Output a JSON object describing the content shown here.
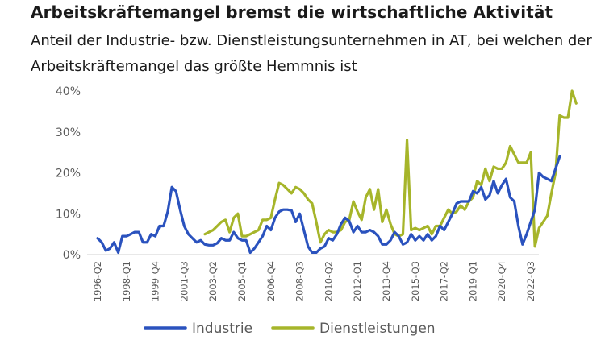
{
  "header": {
    "title": "Arbeitskräftemangel bremst die wirtschaftliche Aktivität",
    "subtitle": "Anteil der Industrie- bzw. Dienstleistungsunternehmen in AT, bei welchen der Arbeitskräftemangel das größte Hemmnis ist"
  },
  "colors": {
    "industrie": "#2a52be",
    "dienstleistungen": "#a6b52a",
    "axis": "#d9d9d9"
  },
  "chart_data": {
    "type": "line",
    "title": "Arbeitskräftemangel bremst die wirtschaftliche Aktivität",
    "subtitle": "Anteil der Industrie- bzw. Dienstleistungsunternehmen in AT, bei welchen der Arbeitskräftemangel das größte Hemmnis ist",
    "xlabel": "",
    "ylabel": "",
    "ylim": [
      0,
      40
    ],
    "y_ticks": [
      "0%",
      "10%",
      "20%",
      "30%",
      "40%"
    ],
    "x_tick_labels": [
      "1996-Q2",
      "1998-Q1",
      "1999-Q4",
      "2001-Q3",
      "2003-Q2",
      "2005-Q1",
      "2006-Q4",
      "2008-Q3",
      "2010-Q2",
      "2012-Q1",
      "2013-Q4",
      "2015-Q3",
      "2017-Q2",
      "2019-Q1",
      "2020-Q4",
      "2022-Q3"
    ],
    "legend": {
      "placement": "bottom",
      "entries": [
        "Industrie",
        "Dienstleistungen"
      ]
    },
    "series": [
      {
        "name": "Industrie",
        "start": "1996-Q2",
        "values": [
          4,
          3,
          1,
          1.5,
          3,
          0.5,
          4.5,
          4.5,
          5,
          5.5,
          5.5,
          3,
          3,
          5,
          4.5,
          7,
          7,
          10.5,
          16.5,
          15.5,
          11,
          7,
          5,
          4,
          3,
          3.5,
          2.5,
          2.3,
          2.3,
          2.8,
          4,
          3.5,
          3.5,
          5.5,
          4,
          3.5,
          3.5,
          0.5,
          1.5,
          3,
          4.5,
          7,
          6,
          9,
          10.5,
          11,
          11,
          10.8,
          8,
          10,
          6,
          2,
          0.5,
          0.5,
          1.5,
          2,
          4,
          3.5,
          5,
          7.5,
          9,
          8.2,
          5.5,
          7,
          5.5,
          5.5,
          6,
          5.5,
          4.5,
          2.5,
          2.5,
          3.5,
          5.5,
          4.5,
          2.5,
          3,
          5,
          3.5,
          4.5,
          3.5,
          5,
          3.5,
          4.5,
          7,
          6,
          8,
          10,
          12.5,
          13,
          13,
          13,
          15.5,
          15,
          16.5,
          13.5,
          14.5,
          18,
          15,
          17,
          18.5,
          14,
          13,
          7,
          2.5,
          5,
          8,
          11,
          20,
          19,
          18.5,
          18,
          21,
          24
        ]
      },
      {
        "name": "Dienstleistungen",
        "start": "2002-Q4",
        "values": [
          5,
          5.5,
          6,
          7,
          8,
          8.5,
          5.5,
          9,
          10,
          4.5,
          4.5,
          5,
          5.5,
          6,
          8.5,
          8.5,
          9,
          13.5,
          17.5,
          17,
          16,
          15,
          16.5,
          16,
          15,
          13.5,
          12.5,
          8,
          3,
          5,
          6,
          5.5,
          5.5,
          6,
          8,
          8.5,
          13,
          10.5,
          8.5,
          14,
          16,
          11,
          16,
          8,
          11,
          7.5,
          5,
          4.5,
          5,
          28,
          6,
          6.5,
          6,
          6.5,
          7,
          5,
          7,
          7,
          9,
          11,
          10,
          10.5,
          12,
          11,
          13,
          14,
          18,
          17,
          21,
          18,
          21.5,
          21,
          21,
          22.5,
          26.5,
          24.5,
          22.5,
          22.5,
          22.5,
          25,
          2,
          6.5,
          8,
          9.5,
          15,
          20,
          34,
          33.5,
          33.5,
          40,
          37
        ]
      }
    ]
  }
}
